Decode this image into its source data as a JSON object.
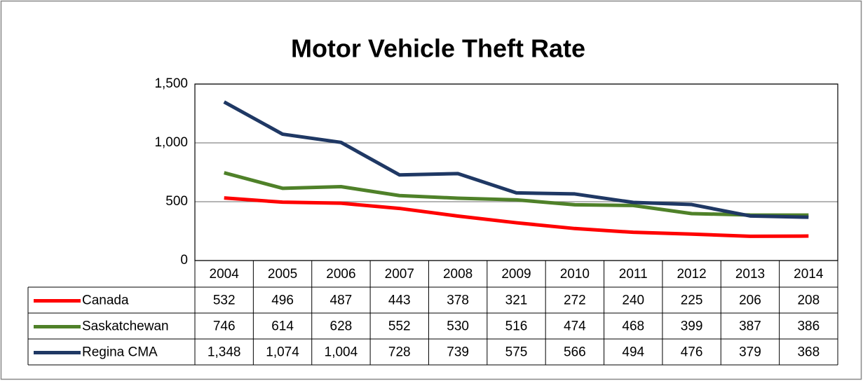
{
  "chart_data": {
    "type": "line",
    "title": "Motor Vehicle Theft Rate",
    "categories": [
      "2004",
      "2005",
      "2006",
      "2007",
      "2008",
      "2009",
      "2010",
      "2011",
      "2012",
      "2013",
      "2014"
    ],
    "series": [
      {
        "name": "Canada",
        "color": "#ff0000",
        "values": [
          532,
          496,
          487,
          443,
          378,
          321,
          272,
          240,
          225,
          206,
          208
        ]
      },
      {
        "name": "Saskatchewan",
        "color": "#4f8129",
        "values": [
          746,
          614,
          628,
          552,
          530,
          516,
          474,
          468,
          399,
          387,
          386
        ]
      },
      {
        "name": "Regina CMA",
        "color": "#1f3864",
        "values": [
          1348,
          1074,
          1004,
          728,
          739,
          575,
          566,
          494,
          476,
          379,
          368
        ],
        "value_labels": [
          "1,348",
          "1,074",
          "1,004",
          "728",
          "739",
          "575",
          "566",
          "494",
          "476",
          "379",
          "368"
        ]
      }
    ],
    "ylim": [
      0,
      1500
    ],
    "yticks": [
      0,
      500,
      {
        "value": 1000,
        "label": "1,000"
      },
      {
        "value": 1500,
        "label": "1,500"
      }
    ],
    "grid": true
  }
}
